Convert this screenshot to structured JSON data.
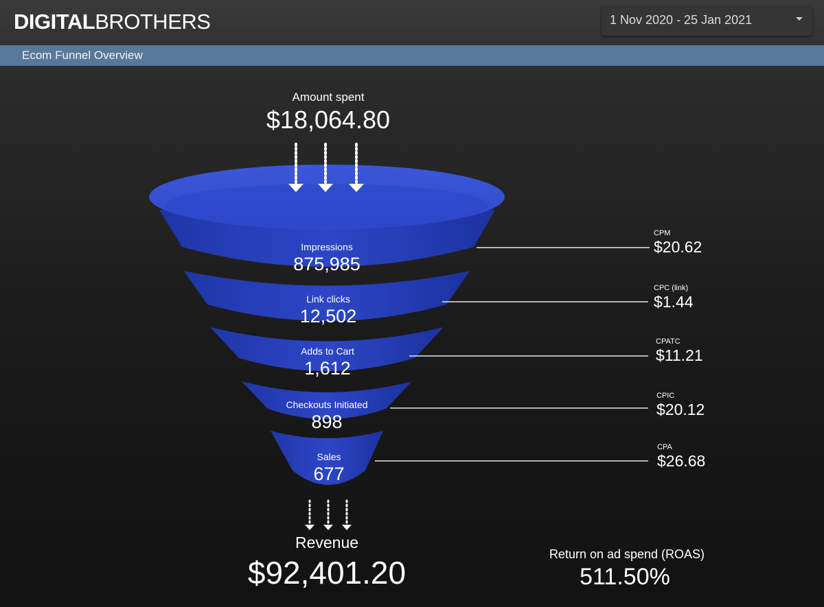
{
  "header": {
    "logo_bold": "DIGITAL",
    "logo_light": "BROTHERS",
    "date_range": "1 Nov 2020 - 25 Jan 2021"
  },
  "section": {
    "title": "Ecom Funnel Overview"
  },
  "spend": {
    "label": "Amount spent",
    "value": "$18,064.80"
  },
  "stages": [
    {
      "label": "Impressions",
      "value": "875,985"
    },
    {
      "label": "Link clicks",
      "value": "12,502"
    },
    {
      "label": "Adds to Cart",
      "value": "1,612"
    },
    {
      "label": "Checkouts Initiated",
      "value": "898"
    },
    {
      "label": "Sales",
      "value": "677"
    }
  ],
  "metrics": [
    {
      "label": "CPM",
      "value": "$20.62"
    },
    {
      "label": "CPC (link)",
      "value": "$1.44"
    },
    {
      "label": "CPATC",
      "value": "$11.21"
    },
    {
      "label": "CPIC",
      "value": "$20.12"
    },
    {
      "label": "CPA",
      "value": "$26.68"
    }
  ],
  "revenue": {
    "label": "Revenue",
    "value": "$92,401.20"
  },
  "roas": {
    "label": "Return on ad spend (ROAS)",
    "value": "511.50%"
  },
  "colors": {
    "funnel": "#2a44c4",
    "section_bar": "#58789a",
    "accent_line": "#ffffff"
  }
}
